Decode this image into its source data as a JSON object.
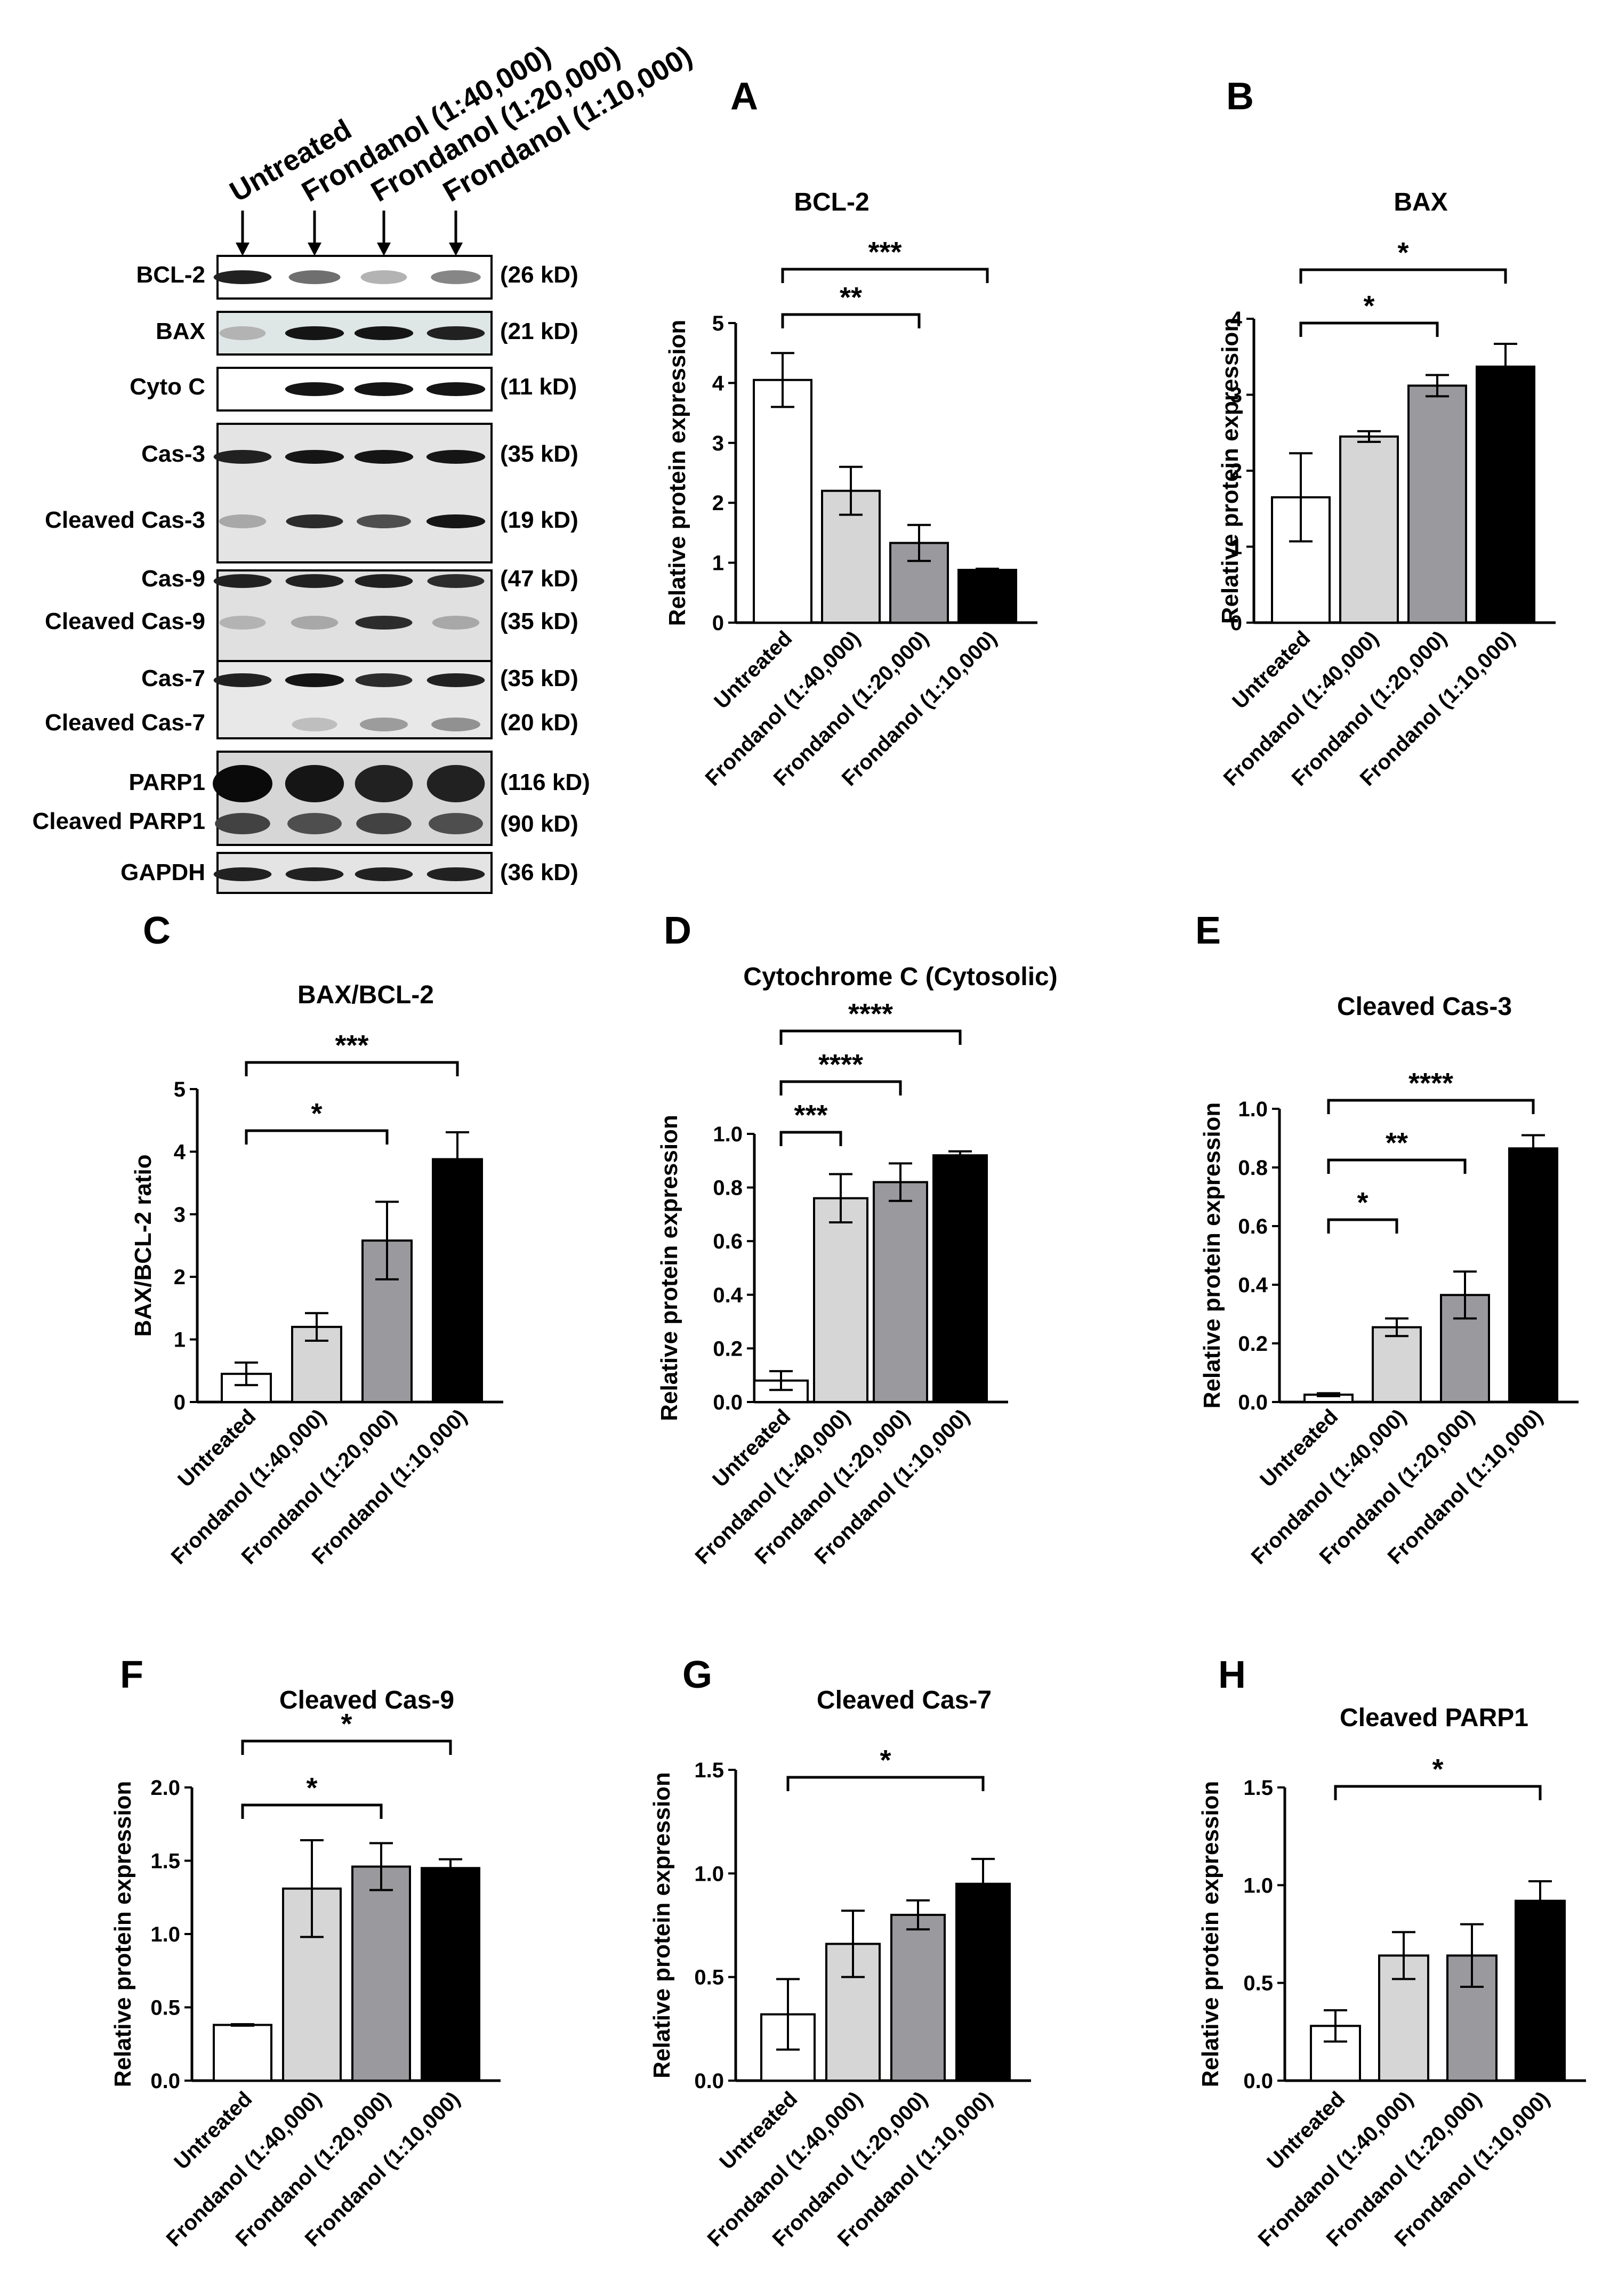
{
  "western_blot": {
    "lanes": [
      "Untreated",
      "Frondanol (1:40,000)",
      "Frondanol (1:20,000)",
      "Frondanol (1:10,000)"
    ],
    "blots": [
      {
        "id": "bcl2",
        "rows": [
          {
            "label": "BCL-2",
            "size": "(26 kD)"
          }
        ],
        "bands": [
          [
            0.9,
            0.55,
            0.25,
            0.45
          ]
        ]
      },
      {
        "id": "bax",
        "rows": [
          {
            "label": "BAX",
            "size": "(21 kD)"
          }
        ],
        "bands": [
          [
            0.25,
            0.95,
            0.95,
            0.9
          ]
        ]
      },
      {
        "id": "cytoc",
        "rows": [
          {
            "label": "Cyto C",
            "size": "(11 kD)"
          }
        ],
        "bands": [
          [
            0.0,
            0.95,
            0.95,
            0.95
          ]
        ]
      },
      {
        "id": "cas3",
        "rows": [
          {
            "label": "Cas-3",
            "size": "(35 kD)"
          },
          {
            "label": "Cleaved Cas-3",
            "size": "(19 kD)"
          }
        ],
        "bands": [
          [
            0.9,
            0.95,
            0.95,
            0.95
          ],
          [
            0.3,
            0.85,
            0.7,
            0.95
          ]
        ]
      },
      {
        "id": "cas9",
        "rows": [
          {
            "label": "Cas-9",
            "size": "(47 kD)"
          },
          {
            "label": "Cleaved Cas-9",
            "size": "(35 kD)"
          }
        ],
        "bands": [
          [
            0.9,
            0.9,
            0.9,
            0.85
          ],
          [
            0.25,
            0.3,
            0.85,
            0.3
          ]
        ]
      },
      {
        "id": "cas7",
        "rows": [
          {
            "label": "Cas-7",
            "size": "(35 kD)"
          },
          {
            "label": "Cleaved Cas-7",
            "size": "(20 kD)"
          }
        ],
        "bands": [
          [
            0.9,
            0.95,
            0.85,
            0.9
          ],
          [
            0.0,
            0.2,
            0.35,
            0.4
          ]
        ]
      },
      {
        "id": "parp1",
        "rows": [
          {
            "label": "PARP1",
            "size": "(116 kD)"
          },
          {
            "label": "Cleaved PARP1",
            "size": "(90 kD)"
          }
        ],
        "bands": [
          [
            1.0,
            0.95,
            0.9,
            0.9
          ],
          [
            0.75,
            0.7,
            0.75,
            0.7
          ]
        ]
      },
      {
        "id": "gapdh",
        "rows": [
          {
            "label": "GAPDH",
            "size": "(36 kD)"
          }
        ],
        "bands": [
          [
            0.9,
            0.9,
            0.9,
            0.9
          ]
        ]
      }
    ]
  },
  "chart_data": [
    {
      "letter": "A",
      "type": "bar",
      "title": "BCL-2",
      "ylabel": "Relative protein expression",
      "ylim": [
        0,
        5
      ],
      "yticks": [
        "0",
        "1",
        "2",
        "3",
        "4",
        "5"
      ],
      "categories": [
        "Untreated",
        "Frondanol (1:40,000)",
        "Frondanol (1:20,000)",
        "Frondanol (1:10,000)"
      ],
      "values": [
        4.05,
        2.2,
        1.33,
        0.88
      ],
      "errors": [
        0.45,
        0.4,
        0.3,
        0.02
      ],
      "colors": [
        "#ffffff",
        "#d6d6d6",
        "#9a9a9e",
        "#000000"
      ],
      "sig": [
        {
          "from": 0,
          "to": 2,
          "label": "**"
        },
        {
          "from": 0,
          "to": 3,
          "label": "***"
        }
      ]
    },
    {
      "letter": "B",
      "type": "bar",
      "title": "BAX",
      "ylabel": "Relative protein expression",
      "ylim": [
        0,
        4
      ],
      "yticks": [
        "0",
        "1",
        "2",
        "3",
        "4"
      ],
      "categories": [
        "Untreated",
        "Frondanol (1:40,000)",
        "Frondanol (1:20,000)",
        "Frondanol (1:10,000)"
      ],
      "values": [
        1.65,
        2.45,
        3.12,
        3.37
      ],
      "errors": [
        0.58,
        0.07,
        0.14,
        0.3
      ],
      "colors": [
        "#ffffff",
        "#d6d6d6",
        "#9a9a9e",
        "#000000"
      ],
      "sig": [
        {
          "from": 0,
          "to": 2,
          "label": "*"
        },
        {
          "from": 0,
          "to": 3,
          "label": "*"
        }
      ]
    },
    {
      "letter": "C",
      "type": "bar",
      "title": "BAX/BCL-2",
      "ylabel": "BAX/BCL-2 ratio",
      "ylim": [
        0,
        5
      ],
      "yticks": [
        "0",
        "1",
        "2",
        "3",
        "4",
        "5"
      ],
      "categories": [
        "Untreated",
        "Frondanol (1:40,000)",
        "Frondanol (1:20,000)",
        "Frondanol (1:10,000)"
      ],
      "values": [
        0.45,
        1.2,
        2.58,
        3.88
      ],
      "errors": [
        0.18,
        0.22,
        0.62,
        0.43
      ],
      "colors": [
        "#ffffff",
        "#d6d6d6",
        "#9a9a9e",
        "#000000"
      ],
      "sig": [
        {
          "from": 0,
          "to": 2,
          "label": "*"
        },
        {
          "from": 0,
          "to": 3,
          "label": "***"
        }
      ]
    },
    {
      "letter": "D",
      "type": "bar",
      "title": "Cytochrome C (Cytosolic)",
      "ylabel": "Relative protein expression",
      "ylim": [
        0,
        1.0
      ],
      "yticks": [
        "0.0",
        "0.2",
        "0.4",
        "0.6",
        "0.8",
        "1.0"
      ],
      "categories": [
        "Untreated",
        "Frondanol (1:40,000)",
        "Frondanol (1:20,000)",
        "Frondanol (1:10,000)"
      ],
      "values": [
        0.08,
        0.76,
        0.82,
        0.92
      ],
      "errors": [
        0.035,
        0.09,
        0.07,
        0.015
      ],
      "colors": [
        "#ffffff",
        "#d6d6d6",
        "#9a9a9e",
        "#000000"
      ],
      "sig": [
        {
          "from": 0,
          "to": 1,
          "label": "***"
        },
        {
          "from": 0,
          "to": 2,
          "label": "****"
        },
        {
          "from": 0,
          "to": 3,
          "label": "****"
        }
      ]
    },
    {
      "letter": "E",
      "type": "bar",
      "title": "Cleaved  Cas-3",
      "ylabel": "Relative protein expression",
      "ylim": [
        0,
        1.0
      ],
      "yticks": [
        "0.0",
        "0.2",
        "0.4",
        "0.6",
        "0.8",
        "1.0"
      ],
      "categories": [
        "Untreated",
        "Frondanol (1:40,000)",
        "Frondanol (1:20,000)",
        "Frondanol (1:10,000)"
      ],
      "values": [
        0.025,
        0.255,
        0.365,
        0.865
      ],
      "errors": [
        0.005,
        0.03,
        0.08,
        0.045
      ],
      "colors": [
        "#ffffff",
        "#d6d6d6",
        "#9a9a9e",
        "#000000"
      ],
      "sig": [
        {
          "from": 0,
          "to": 1,
          "label": "*"
        },
        {
          "from": 0,
          "to": 2,
          "label": "**"
        },
        {
          "from": 0,
          "to": 3,
          "label": "****"
        }
      ]
    },
    {
      "letter": "F",
      "type": "bar",
      "title": "Cleaved  Cas-9",
      "ylabel": "Relative protein expression",
      "ylim": [
        0,
        2.0
      ],
      "yticks": [
        "0.0",
        "0.5",
        "1.0",
        "1.5",
        "2.0"
      ],
      "categories": [
        "Untreated",
        "Frondanol (1:40,000)",
        "Frondanol (1:20,000)",
        "Frondanol (1:10,000)"
      ],
      "values": [
        0.38,
        1.31,
        1.46,
        1.45
      ],
      "errors": [
        0.005,
        0.33,
        0.16,
        0.06
      ],
      "colors": [
        "#ffffff",
        "#d6d6d6",
        "#9a9a9e",
        "#000000"
      ],
      "sig": [
        {
          "from": 0,
          "to": 2,
          "label": "*"
        },
        {
          "from": 0,
          "to": 3,
          "label": "*"
        }
      ]
    },
    {
      "letter": "G",
      "type": "bar",
      "title": "Cleaved Cas-7",
      "ylabel": "Relative protein expression",
      "ylim": [
        0,
        1.5
      ],
      "yticks": [
        "0.0",
        "0.5",
        "1.0",
        "1.5"
      ],
      "categories": [
        "Untreated",
        "Frondanol (1:40,000)",
        "Frondanol (1:20,000)",
        "Frondanol (1:10,000)"
      ],
      "values": [
        0.32,
        0.66,
        0.8,
        0.95
      ],
      "errors": [
        0.17,
        0.16,
        0.07,
        0.12
      ],
      "colors": [
        "#ffffff",
        "#d6d6d6",
        "#9a9a9e",
        "#000000"
      ],
      "sig": [
        {
          "from": 0,
          "to": 3,
          "label": "*"
        }
      ]
    },
    {
      "letter": "H",
      "type": "bar",
      "title": "Cleaved PARP1",
      "ylabel": "Relative protein expression",
      "ylim": [
        0,
        1.5
      ],
      "yticks": [
        "0.0",
        "0.5",
        "1.0",
        "1.5"
      ],
      "categories": [
        "Untreated",
        "Frondanol (1:40,000)",
        "Frondanol (1:20,000)",
        "Frondanol (1:10,000)"
      ],
      "values": [
        0.28,
        0.64,
        0.64,
        0.92
      ],
      "errors": [
        0.08,
        0.12,
        0.16,
        0.1
      ],
      "colors": [
        "#ffffff",
        "#d6d6d6",
        "#9a9a9e",
        "#000000"
      ],
      "sig": [
        {
          "from": 0,
          "to": 3,
          "label": "*"
        }
      ]
    }
  ]
}
